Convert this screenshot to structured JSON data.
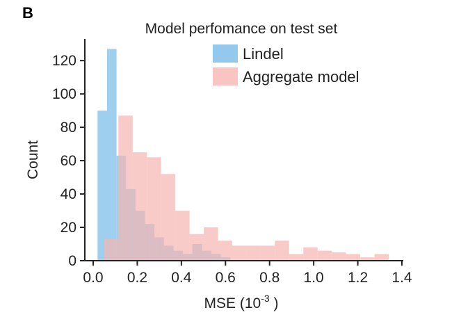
{
  "panel_label": "B",
  "chart_data": {
    "type": "bar",
    "subtype": "overlaid-histogram",
    "title": "Model perfomance on test set",
    "xlabel": "MSE (10",
    "xlabel_superscript": "-3",
    "xlabel_suffix": " )",
    "ylabel": "Count",
    "xlim": [
      -0.05,
      1.4
    ],
    "ylim": [
      0,
      133
    ],
    "xticks": [
      0.0,
      0.2,
      0.4,
      0.6,
      0.8,
      1.0,
      1.2,
      1.4
    ],
    "xtick_labels": [
      "0.0",
      "0.2",
      "0.4",
      "0.6",
      "0.8",
      "1.0",
      "1.2",
      "1.4"
    ],
    "yticks": [
      0,
      20,
      40,
      60,
      80,
      100,
      120
    ],
    "ytick_labels": [
      "0",
      "20",
      "40",
      "60",
      "80",
      "100",
      "120"
    ],
    "grid": false,
    "legend_position": "top-right",
    "series": [
      {
        "name": "Lindel",
        "color": "#86c3ea",
        "opacity": 0.8,
        "bin_start": 0.02,
        "bin_width": 0.043,
        "values": [
          90,
          127,
          63,
          43,
          30,
          22,
          14,
          9,
          6,
          4,
          10,
          6,
          4,
          2
        ]
      },
      {
        "name": "Aggregate model",
        "color": "#f7b5b1",
        "opacity": 0.7,
        "bin_start": 0.05,
        "bin_width": 0.0645,
        "values": [
          13,
          87,
          65,
          62,
          52,
          30,
          16,
          20,
          12,
          9,
          9,
          9,
          12,
          4,
          8,
          6,
          5,
          4,
          2,
          4
        ]
      }
    ]
  }
}
